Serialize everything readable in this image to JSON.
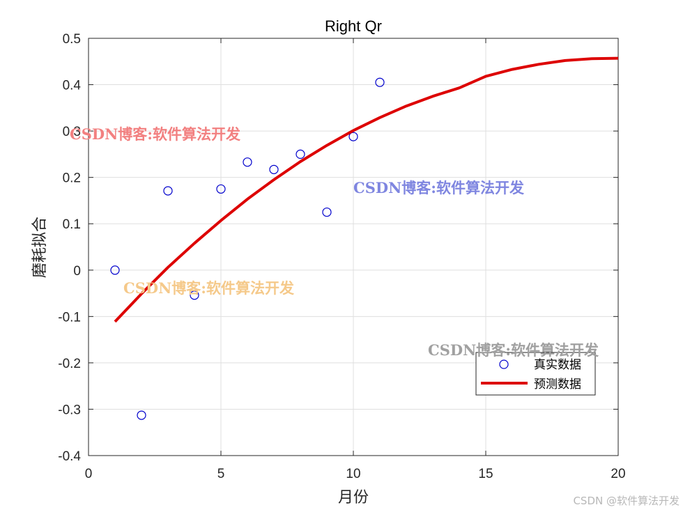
{
  "chart_data": {
    "type": "scatter",
    "title": "Right Qr",
    "xlabel": "月份",
    "ylabel": "磨耗拟合",
    "xlim": [
      0,
      20
    ],
    "ylim": [
      -0.4,
      0.5
    ],
    "x_ticks": [
      0,
      5,
      10,
      15,
      20
    ],
    "x_tick_labels": [
      "0",
      "5",
      "10",
      "15",
      "20"
    ],
    "y_ticks": [
      0.5,
      0.4,
      0.3,
      0.2,
      0.1,
      0,
      -0.1,
      -0.2,
      -0.3,
      -0.4
    ],
    "y_tick_labels": [
      "0.5",
      "0.4",
      "0.3",
      "0.2",
      "0.1",
      "0",
      "-0.1",
      "-0.2",
      "-0.3",
      "-0.4"
    ],
    "grid": true,
    "legend_position": "bottom-right",
    "series": [
      {
        "name": "真实数据",
        "kind": "markers",
        "marker": "circle",
        "color": "#0000cc",
        "x": [
          1,
          2,
          3,
          4,
          5,
          6,
          7,
          8,
          9,
          10,
          11
        ],
        "y": [
          0.0,
          -0.313,
          0.171,
          -0.054,
          0.175,
          0.233,
          0.217,
          0.25,
          0.125,
          0.288,
          0.405
        ]
      },
      {
        "name": "预测数据",
        "kind": "line",
        "color": "#dd0000",
        "x": [
          1,
          2,
          3,
          4,
          5,
          6,
          7,
          8,
          9,
          10,
          11,
          12,
          13,
          14,
          15,
          16,
          17,
          18,
          19,
          20
        ],
        "y": [
          -0.111,
          -0.051,
          0.006,
          0.058,
          0.107,
          0.153,
          0.195,
          0.234,
          0.269,
          0.301,
          0.329,
          0.354,
          0.375,
          0.393,
          0.418,
          0.433,
          0.444,
          0.452,
          0.456,
          0.457
        ]
      }
    ]
  },
  "watermarks": [
    {
      "text": "CSDN博客:软件算法开发",
      "color": "#f28080"
    },
    {
      "text": "CSDN博客:软件算法开发",
      "color": "#7f86e0"
    },
    {
      "text": "CSDN博客:软件算法开发",
      "color": "#f5c98a"
    },
    {
      "text": "CSDN博客:软件算法开发",
      "color": "#a0a0a0"
    }
  ],
  "footer_mark": "CSDN @软件算法开发"
}
